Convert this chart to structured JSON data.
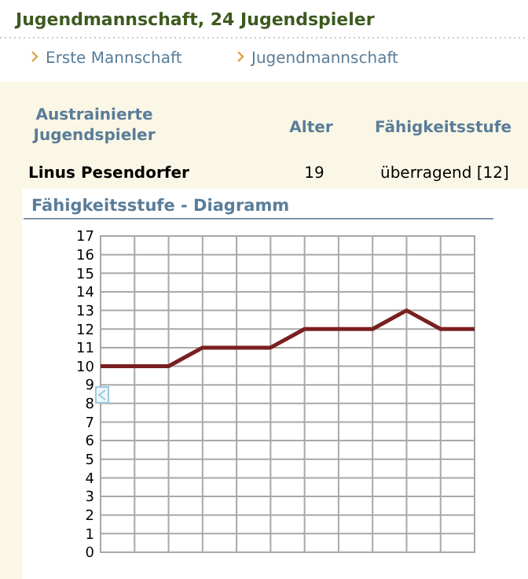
{
  "chart_data": {
    "type": "line",
    "title": "Jugendmannschaft, 24 Jugendspieler",
    "subtitle": "Fähigkeitsstufe - Diagramm",
    "annotations": [
      "Erste Mannschaft",
      "Jugendmannschaft",
      "Austrainierte Jugendspieler",
      "Alter",
      "Fähigkeitsstufe",
      "Linus Pesendorfer",
      "19",
      "überragend [12]"
    ],
    "categories": [
      null,
      null,
      null,
      null,
      null,
      null,
      null,
      null,
      null,
      null,
      null,
      null
    ],
    "series": [
      {
        "color": "#7a1f1f",
        "values": [
          10,
          10,
          10,
          11,
          11,
          11,
          12,
          12,
          12,
          13,
          12,
          12
        ]
      }
    ],
    "ylim": [
      0,
      17
    ],
    "yticks": [
      0,
      1,
      2,
      3,
      4,
      5,
      6,
      7,
      8,
      9,
      10,
      11,
      12,
      13,
      14,
      15,
      16,
      17
    ],
    "grid": true,
    "marker": "none",
    "line_style": "solid"
  }
}
